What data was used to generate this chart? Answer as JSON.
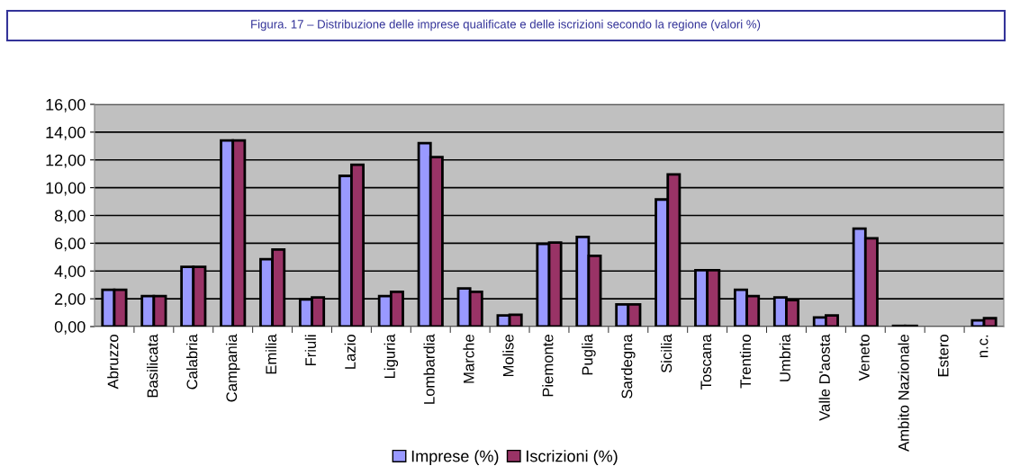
{
  "chart_data": {
    "type": "bar",
    "title": "Figura. 17 – Distribuzione delle imprese qualificate e delle iscrizioni secondo la regione (valori %)",
    "categories": [
      "Abruzzo",
      "Basilicata",
      "Calabria",
      "Campania",
      "Emilia",
      "Friuli",
      "Lazio",
      "Liguria",
      "Lombardia",
      "Marche",
      "Molise",
      "Piemonte",
      "Puglia",
      "Sardegna",
      "Sicilia",
      "Toscana",
      "Trentino",
      "Umbria",
      "Valle D'aosta",
      "Veneto",
      "Ambito Nazionale",
      "Estero",
      "n.c."
    ],
    "series": [
      {
        "name": "Imprese (%)",
        "color": "#9999ff",
        "values": [
          2.65,
          2.2,
          4.3,
          13.4,
          4.85,
          1.95,
          10.85,
          2.2,
          13.2,
          2.75,
          0.8,
          5.95,
          6.45,
          1.6,
          9.15,
          4.05,
          2.65,
          2.1,
          0.65,
          7.05,
          0.05,
          null,
          0.45
        ]
      },
      {
        "name": "Iscrizioni (%)",
        "color": "#993366",
        "values": [
          2.65,
          2.2,
          4.3,
          13.4,
          5.55,
          2.1,
          11.65,
          2.5,
          12.2,
          2.5,
          0.85,
          6.05,
          5.1,
          1.6,
          10.95,
          4.05,
          2.2,
          1.9,
          0.8,
          6.35,
          0.05,
          null,
          0.6
        ]
      }
    ],
    "ylim": [
      0,
      16
    ],
    "yticks": [
      {
        "value": 0,
        "label": "0,00"
      },
      {
        "value": 2,
        "label": "2,00"
      },
      {
        "value": 4,
        "label": "4,00"
      },
      {
        "value": 6,
        "label": "6,00"
      },
      {
        "value": 8,
        "label": "8,00"
      },
      {
        "value": 10,
        "label": "10,00"
      },
      {
        "value": 12,
        "label": "12,00"
      },
      {
        "value": 14,
        "label": "14,00"
      },
      {
        "value": 16,
        "label": "16,00"
      }
    ],
    "grid": "y",
    "legend": "bottom"
  }
}
